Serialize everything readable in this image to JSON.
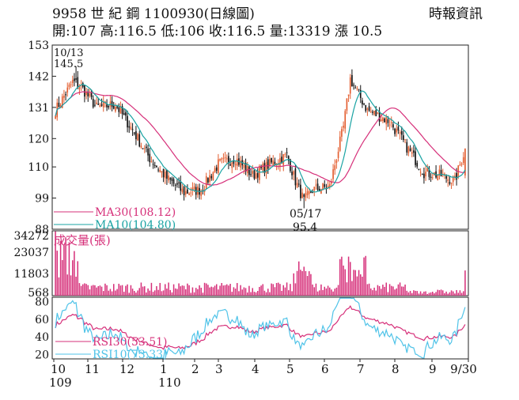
{
  "header": {
    "title": "9958 世 紀 鋼 1100930(日線圖)",
    "quote": "開:107 高:116.5 低:106 收:116.5 量:13319 漲 10.5",
    "source": "時報資訊"
  },
  "chart_data": {
    "type": "candlestick",
    "price_panel": {
      "yticks": [
        88,
        99,
        110,
        120,
        131,
        142,
        153
      ],
      "ylim": [
        88,
        153
      ],
      "annotations": [
        {
          "label_top": "10/13",
          "label_bottom": "145.5",
          "kind": "high",
          "date": "10/13",
          "value": 145.5
        },
        {
          "label_top": "05/17",
          "label_bottom": "95.4",
          "kind": "low",
          "date": "05/17",
          "value": 95.4
        }
      ],
      "legend": [
        {
          "name": "MA30(108.12)",
          "color": "#d6307a"
        },
        {
          "name": "MA10(104.80)",
          "color": "#1aa3a3"
        }
      ],
      "last_close": 116.5
    },
    "volume_panel": {
      "title": "成交量(張)",
      "yticks": [
        568,
        11803,
        23037,
        34272
      ],
      "ylim": [
        568,
        34272
      ],
      "bar_color": "#d6307a",
      "last_volume": 13319
    },
    "rsi_panel": {
      "yticks": [
        20,
        40,
        60,
        80
      ],
      "ylim": [
        15,
        85
      ],
      "legend": [
        {
          "name": "RSI30(53.51)",
          "color": "#d6307a"
        },
        {
          "name": "RSI10(73.33)",
          "color": "#4fc3e8"
        }
      ]
    },
    "x_axis": {
      "ticks": [
        "10",
        "11",
        "12",
        "1",
        "2",
        "3",
        "4",
        "5",
        "6",
        "7",
        "8",
        "9",
        "9/30"
      ],
      "years": [
        {
          "label": "109",
          "at": "10"
        },
        {
          "label": "110",
          "at": "1"
        }
      ]
    },
    "colors": {
      "up": "#e35d2f",
      "down": "#111111",
      "ma30": "#d6307a",
      "ma10": "#1aa3a3",
      "rsi30": "#d6307a",
      "rsi10": "#4fc3e8"
    }
  }
}
